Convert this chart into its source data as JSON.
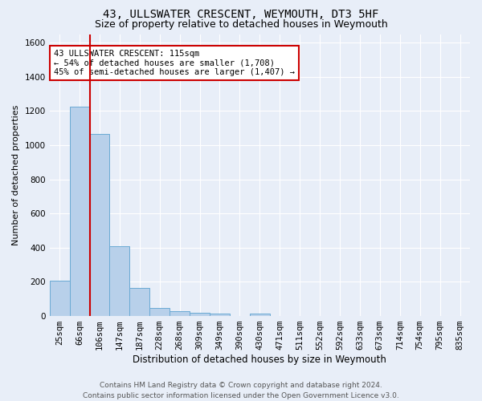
{
  "title1": "43, ULLSWATER CRESCENT, WEYMOUTH, DT3 5HF",
  "title2": "Size of property relative to detached houses in Weymouth",
  "xlabel": "Distribution of detached houses by size in Weymouth",
  "ylabel": "Number of detached properties",
  "categories": [
    "25sqm",
    "66sqm",
    "106sqm",
    "147sqm",
    "187sqm",
    "228sqm",
    "268sqm",
    "309sqm",
    "349sqm",
    "390sqm",
    "430sqm",
    "471sqm",
    "511sqm",
    "552sqm",
    "592sqm",
    "633sqm",
    "673sqm",
    "714sqm",
    "754sqm",
    "795sqm",
    "835sqm"
  ],
  "values": [
    205,
    1225,
    1065,
    410,
    165,
    47,
    27,
    17,
    14,
    0,
    14,
    0,
    0,
    0,
    0,
    0,
    0,
    0,
    0,
    0,
    0
  ],
  "bar_color": "#b8d0ea",
  "bar_edge_color": "#6aaad4",
  "red_line_x": 2,
  "red_line_color": "#cc0000",
  "annotation_text": "43 ULLSWATER CRESCENT: 115sqm\n← 54% of detached houses are smaller (1,708)\n45% of semi-detached houses are larger (1,407) →",
  "annotation_box_color": "#ffffff",
  "annotation_box_edge": "#cc0000",
  "ylim": [
    0,
    1650
  ],
  "yticks": [
    0,
    200,
    400,
    600,
    800,
    1000,
    1200,
    1400,
    1600
  ],
  "bg_color": "#e8eef8",
  "grid_color": "#ffffff",
  "footer": "Contains HM Land Registry data © Crown copyright and database right 2024.\nContains public sector information licensed under the Open Government Licence v3.0.",
  "title1_fontsize": 10,
  "title2_fontsize": 9,
  "xlabel_fontsize": 8.5,
  "ylabel_fontsize": 8,
  "tick_fontsize": 7.5,
  "annotation_fontsize": 7.5,
  "footer_fontsize": 6.5
}
